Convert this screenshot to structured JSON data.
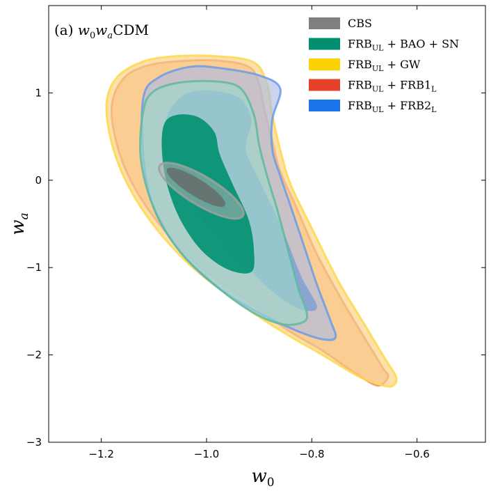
{
  "chart_data": {
    "type": "contour",
    "panel_label": {
      "prefix": "(a) ",
      "model": "w0waCDM"
    },
    "xlabel": "w0",
    "ylabel": "wa",
    "xlim": [
      -1.3,
      -0.47
    ],
    "ylim": [
      -3.0,
      2.0
    ],
    "xticks": [
      -1.2,
      -1.0,
      -0.8,
      -0.6
    ],
    "xtick_labels": [
      "−1.2",
      "−1.0",
      "−0.8",
      "−0.6"
    ],
    "yticks": [
      -3,
      -2,
      -1,
      0,
      1
    ],
    "ytick_labels": [
      "−3",
      "−2",
      "−1",
      "0",
      "1"
    ],
    "legend_position": "top-right",
    "series": [
      {
        "key": "frb_frb1",
        "name": "FRB_UL + FRB1_L",
        "legend_base": "FRB",
        "legend_sub": "UL",
        "legend_mid": " + FRB1",
        "legend_sub2": "L",
        "color": "#e8412b",
        "fill": "#f3a98d",
        "edge": "#e78a78",
        "outer": [
          [
            -1.18,
            0.85
          ],
          [
            -1.16,
            1.15
          ],
          [
            -1.12,
            1.3
          ],
          [
            -1.06,
            1.36
          ],
          [
            -0.98,
            1.37
          ],
          [
            -0.92,
            1.3
          ],
          [
            -0.9,
            1.1
          ],
          [
            -0.89,
            0.8
          ],
          [
            -0.875,
            0.45
          ],
          [
            -0.86,
            0.1
          ],
          [
            -0.83,
            -0.3
          ],
          [
            -0.79,
            -0.85
          ],
          [
            -0.74,
            -1.4
          ],
          [
            -0.69,
            -1.9
          ],
          [
            -0.665,
            -2.15
          ],
          [
            -0.655,
            -2.25
          ],
          [
            -0.675,
            -2.35
          ],
          [
            -0.72,
            -2.2
          ],
          [
            -0.78,
            -1.95
          ],
          [
            -0.85,
            -1.7
          ],
          [
            -0.93,
            -1.35
          ],
          [
            -1.02,
            -0.95
          ],
          [
            -1.09,
            -0.5
          ],
          [
            -1.14,
            -0.05
          ],
          [
            -1.17,
            0.4
          ]
        ],
        "inner": []
      },
      {
        "key": "frb_gw",
        "name": "FRB_UL + GW",
        "legend_base": "FRB",
        "legend_sub": "UL",
        "legend_mid": " + GW",
        "legend_sub2": "",
        "color": "#fcd200",
        "fill": "#fbcf7a",
        "edge": "#ffd84a",
        "outer": [
          [
            -1.19,
            0.88
          ],
          [
            -1.17,
            1.18
          ],
          [
            -1.12,
            1.36
          ],
          [
            -1.06,
            1.42
          ],
          [
            -0.98,
            1.42
          ],
          [
            -0.91,
            1.35
          ],
          [
            -0.885,
            1.1
          ],
          [
            -0.875,
            0.75
          ],
          [
            -0.86,
            0.35
          ],
          [
            -0.84,
            -0.05
          ],
          [
            -0.8,
            -0.55
          ],
          [
            -0.75,
            -1.15
          ],
          [
            -0.7,
            -1.65
          ],
          [
            -0.66,
            -2.05
          ],
          [
            -0.64,
            -2.25
          ],
          [
            -0.645,
            -2.35
          ],
          [
            -0.665,
            -2.35
          ],
          [
            -0.71,
            -2.25
          ],
          [
            -0.78,
            -2.0
          ],
          [
            -0.86,
            -1.72
          ],
          [
            -0.94,
            -1.4
          ],
          [
            -1.03,
            -0.98
          ],
          [
            -1.1,
            -0.52
          ],
          [
            -1.15,
            -0.05
          ],
          [
            -1.18,
            0.42
          ]
        ],
        "inner": []
      },
      {
        "key": "frb_frb2",
        "name": "FRB_UL + FRB2_L",
        "legend_base": "FRB",
        "legend_sub": "UL",
        "legend_mid": " + FRB2",
        "legend_sub2": "L",
        "color": "#1a73e8",
        "fill": "#a9b9e8",
        "edge": "#6b9be8",
        "outer": [
          [
            -1.12,
            0.95
          ],
          [
            -1.09,
            1.18
          ],
          [
            -1.03,
            1.3
          ],
          [
            -0.97,
            1.28
          ],
          [
            -0.9,
            1.2
          ],
          [
            -0.86,
            1.05
          ],
          [
            -0.875,
            0.7
          ],
          [
            -0.875,
            0.35
          ],
          [
            -0.86,
            0.05
          ],
          [
            -0.84,
            -0.3
          ],
          [
            -0.815,
            -0.75
          ],
          [
            -0.79,
            -1.2
          ],
          [
            -0.765,
            -1.6
          ],
          [
            -0.755,
            -1.8
          ],
          [
            -0.78,
            -1.82
          ],
          [
            -0.83,
            -1.72
          ],
          [
            -0.9,
            -1.52
          ],
          [
            -0.98,
            -1.22
          ],
          [
            -1.05,
            -0.82
          ],
          [
            -1.1,
            -0.32
          ],
          [
            -1.12,
            0.25
          ]
        ],
        "inner": [
          [
            -1.08,
            0.65
          ],
          [
            -1.05,
            0.95
          ],
          [
            -1.0,
            1.03
          ],
          [
            -0.94,
            0.95
          ],
          [
            -0.915,
            0.7
          ],
          [
            -0.925,
            0.35
          ],
          [
            -0.9,
            0.0
          ],
          [
            -0.86,
            -0.5
          ],
          [
            -0.82,
            -1.1
          ],
          [
            -0.79,
            -1.45
          ],
          [
            -0.82,
            -1.48
          ],
          [
            -0.87,
            -1.3
          ],
          [
            -0.93,
            -0.95
          ],
          [
            -1.0,
            -0.5
          ],
          [
            -1.05,
            -0.05
          ],
          [
            -1.08,
            0.3
          ]
        ]
      },
      {
        "key": "frb_bao",
        "name": "FRB_UL + BAO + SN",
        "legend_base": "FRB",
        "legend_sub": "UL",
        "legend_mid": " + BAO + SN",
        "legend_sub2": "",
        "color": "#009070",
        "fill": "#9dd8cc",
        "edge": "#5fb8a0",
        "outer": [
          [
            -1.12,
            0.8
          ],
          [
            -1.1,
            1.02
          ],
          [
            -1.05,
            1.12
          ],
          [
            -0.98,
            1.13
          ],
          [
            -0.935,
            1.05
          ],
          [
            -0.91,
            0.75
          ],
          [
            -0.9,
            0.4
          ],
          [
            -0.885,
            0.05
          ],
          [
            -0.865,
            -0.35
          ],
          [
            -0.845,
            -0.8
          ],
          [
            -0.825,
            -1.25
          ],
          [
            -0.81,
            -1.5
          ],
          [
            -0.815,
            -1.62
          ],
          [
            -0.855,
            -1.65
          ],
          [
            -0.91,
            -1.52
          ],
          [
            -0.98,
            -1.22
          ],
          [
            -1.05,
            -0.82
          ],
          [
            -1.1,
            -0.32
          ],
          [
            -1.125,
            0.25
          ]
        ],
        "inner": [
          [
            -1.085,
            0.35
          ],
          [
            -1.08,
            0.65
          ],
          [
            -1.055,
            0.75
          ],
          [
            -1.015,
            0.72
          ],
          [
            -0.985,
            0.55
          ],
          [
            -0.975,
            0.3
          ],
          [
            -0.95,
            -0.05
          ],
          [
            -0.92,
            -0.45
          ],
          [
            -0.91,
            -0.8
          ],
          [
            -0.915,
            -1.05
          ],
          [
            -0.96,
            -1.02
          ],
          [
            -1.01,
            -0.8
          ],
          [
            -1.05,
            -0.45
          ],
          [
            -1.075,
            -0.05
          ]
        ]
      },
      {
        "key": "cbs",
        "name": "CBS",
        "legend_base": "CBS",
        "legend_sub": "",
        "legend_mid": "",
        "legend_sub2": "",
        "color": "#7f7f7f",
        "fill": "#b0b0b0",
        "edge": "#a0a0a0",
        "ellipse": {
          "center": [
            -1.01,
            -0.12
          ],
          "semi_major": 0.88,
          "semi_minor": 0.1,
          "angle_deg": -31
        },
        "inner_ellipse": {
          "center": [
            -1.02,
            -0.08
          ],
          "semi_major": 0.62,
          "semi_minor": 0.06,
          "angle_deg": -32
        }
      }
    ],
    "legend_order": [
      "cbs",
      "frb_bao",
      "frb_gw",
      "frb_frb1",
      "frb_frb2"
    ]
  }
}
